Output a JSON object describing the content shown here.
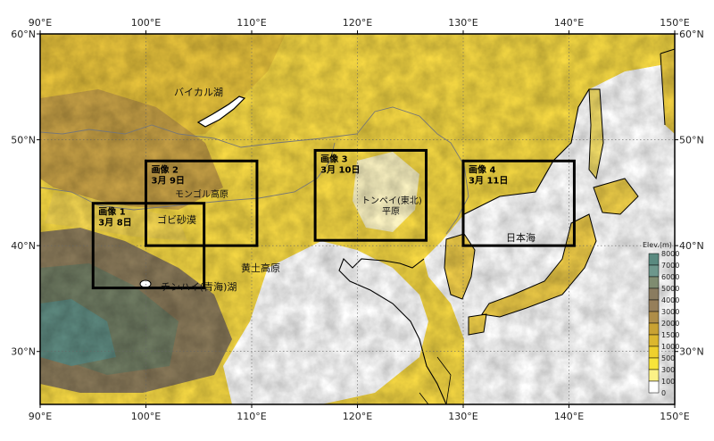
{
  "map": {
    "lon_range": [
      90,
      150
    ],
    "lat_range": [
      25,
      60
    ],
    "lon_ticks": [
      "90°E",
      "100°E",
      "110°E",
      "120°E",
      "130°E",
      "140°E",
      "150°E"
    ],
    "lat_ticks": [
      "60°N",
      "50°N",
      "40°N",
      "30°N"
    ],
    "grid": "dotted"
  },
  "places": {
    "baikal": "バイカル湖",
    "mongol": "モンゴル高原",
    "gobi": "ゴビ砂漠",
    "loess": "黄土高原",
    "qinghai": "チンハイ(青海)湖",
    "dongbei_1": "トンペイ(東北)",
    "dongbei_2": "平原",
    "japan_sea": "日本海"
  },
  "regions": [
    {
      "title": "画像 1",
      "date": "3月 8日",
      "lon": [
        95,
        105.5
      ],
      "lat": [
        36,
        44
      ]
    },
    {
      "title": "画像 2",
      "date": "3月 9日",
      "lon": [
        100,
        110.5
      ],
      "lat": [
        40,
        48
      ]
    },
    {
      "title": "画像 3",
      "date": "3月 10日",
      "lon": [
        116,
        126.5
      ],
      "lat": [
        40.5,
        49
      ]
    },
    {
      "title": "画像 4",
      "date": "3月 11日",
      "lon": [
        130,
        140.5
      ],
      "lat": [
        40,
        48
      ]
    }
  ],
  "legend": {
    "title": "Elev.(m)",
    "levels": [
      "8000",
      "7000",
      "6000",
      "5000",
      "4000",
      "3000",
      "2000",
      "1500",
      "1000",
      "500",
      "300",
      "100",
      "0"
    ],
    "colors": [
      "#5a8a80",
      "#6d978c",
      "#7f8c70",
      "#8a7c60",
      "#967f5a",
      "#ae8d48",
      "#c9a233",
      "#dcb72e",
      "#efd02c",
      "#f8e43a",
      "#fcf186",
      "#ffffff"
    ]
  }
}
